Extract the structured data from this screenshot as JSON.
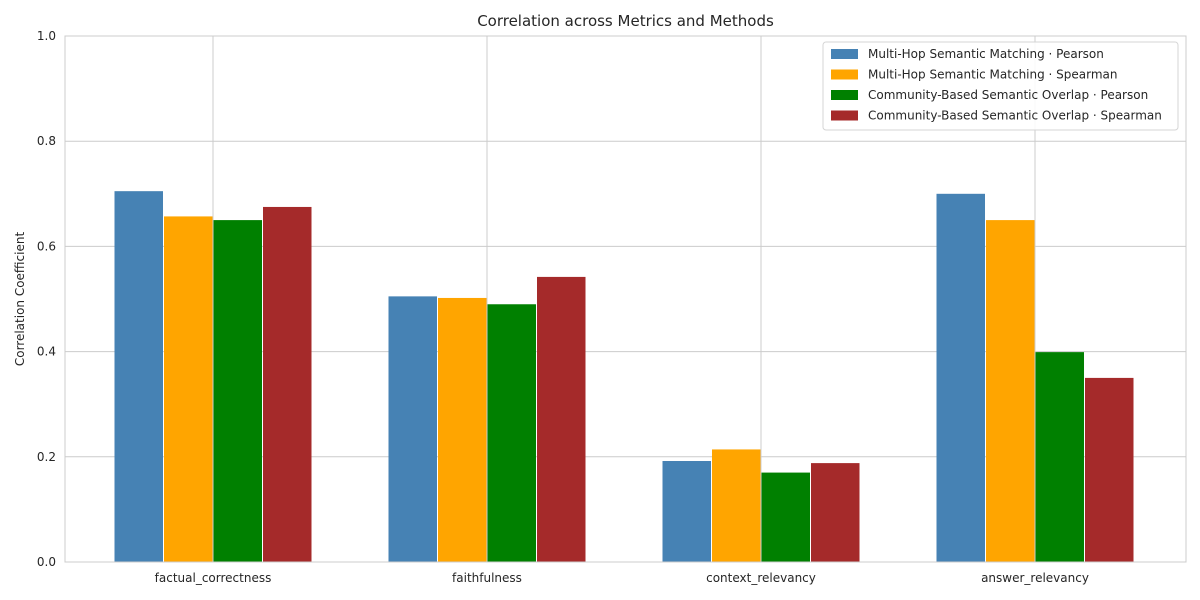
{
  "chart_data": {
    "type": "bar",
    "title": "Correlation across Metrics and Methods",
    "xlabel": "",
    "ylabel": "Correlation Coefficient",
    "ylim": [
      0,
      1.0
    ],
    "yticks": [
      0.0,
      0.2,
      0.4,
      0.6,
      0.8,
      1.0
    ],
    "ytick_labels": [
      "0.0",
      "0.2",
      "0.4",
      "0.6",
      "0.8",
      "1.0"
    ],
    "grid": true,
    "legend_position": "top-right",
    "categories": [
      "factual_correctness",
      "faithfulness",
      "context_relevancy",
      "answer_relevancy"
    ],
    "series": [
      {
        "name": "Multi-Hop Semantic Matching · Pearson",
        "color": "#4682b4",
        "values": [
          0.705,
          0.505,
          0.192,
          0.7
        ]
      },
      {
        "name": "Multi-Hop Semantic Matching · Spearman",
        "color": "#ffa500",
        "values": [
          0.657,
          0.502,
          0.214,
          0.65
        ]
      },
      {
        "name": "Community-Based Semantic Overlap · Pearson",
        "color": "#008000",
        "values": [
          0.65,
          0.49,
          0.17,
          0.399
        ]
      },
      {
        "name": "Community-Based Semantic Overlap · Spearman",
        "color": "#a52a2a",
        "values": [
          0.675,
          0.542,
          0.188,
          0.35
        ]
      }
    ]
  }
}
